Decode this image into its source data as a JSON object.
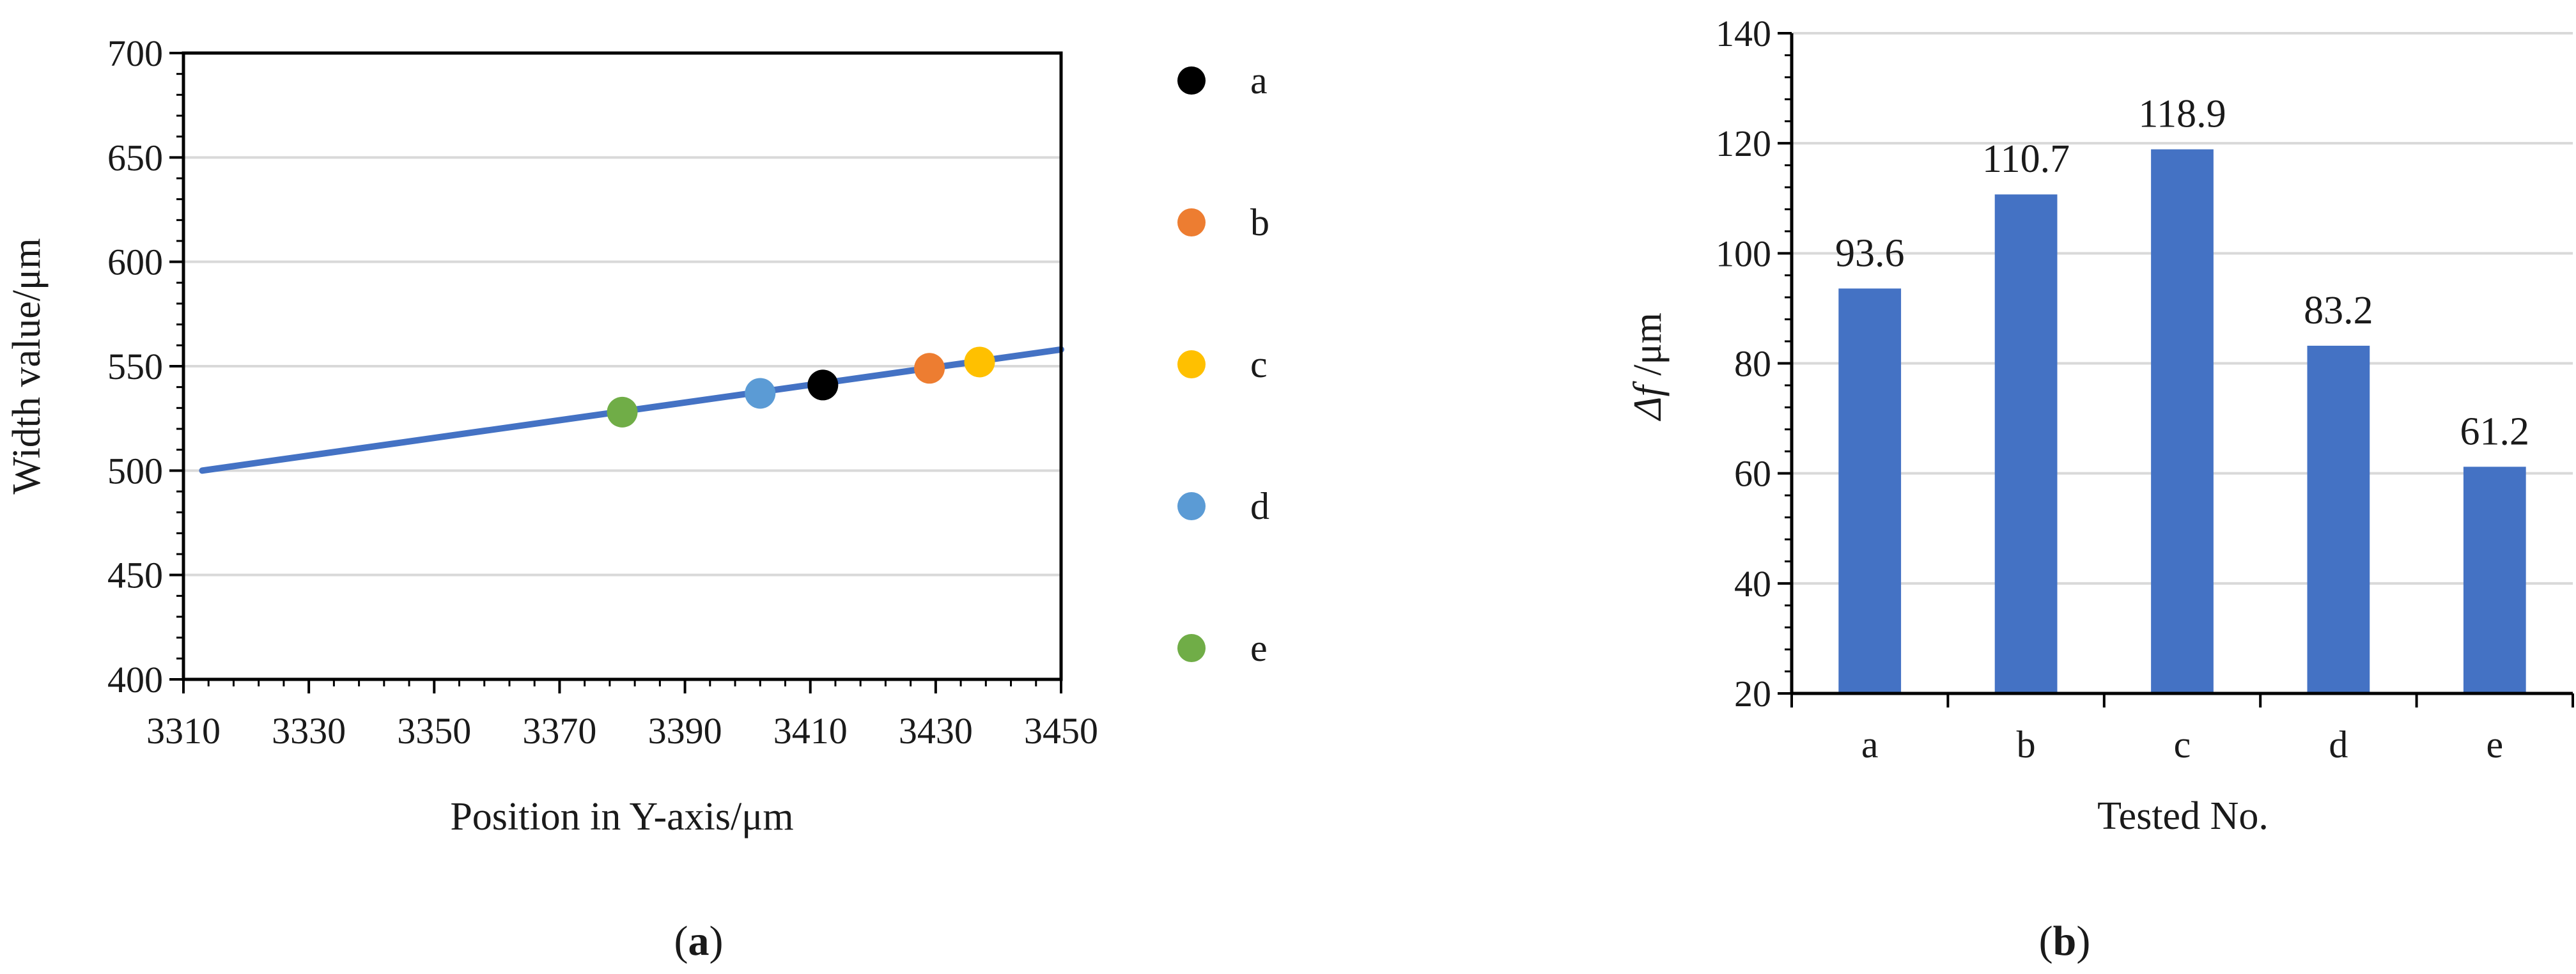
{
  "panels": [
    {
      "caption_open": "(",
      "caption_letter": "a",
      "caption_close": ")"
    },
    {
      "caption_open": "(",
      "caption_letter": "b",
      "caption_close": ")"
    }
  ],
  "chart_data": [
    {
      "type": "scatter",
      "title": "",
      "xlabel": "Position in Y-axis/μm",
      "ylabel": "Width value/μm",
      "xlim": [
        3310,
        3450
      ],
      "ylim": [
        400,
        700
      ],
      "xticks": [
        3310,
        3330,
        3350,
        3370,
        3390,
        3410,
        3430,
        3450
      ],
      "yticks": [
        400,
        450,
        500,
        550,
        600,
        650,
        700
      ],
      "grid": true,
      "legend": "right",
      "line": {
        "color": "#4472c4",
        "x": [
          3313,
          3450
        ],
        "y": [
          500,
          558
        ]
      },
      "series": [
        {
          "name": "a",
          "color": "#000000",
          "x": 3412,
          "y": 541
        },
        {
          "name": "b",
          "color": "#ed7d31",
          "x": 3429,
          "y": 549
        },
        {
          "name": "c",
          "color": "#ffc000",
          "x": 3437,
          "y": 552
        },
        {
          "name": "d",
          "color": "#5b9bd5",
          "x": 3402,
          "y": 537
        },
        {
          "name": "e",
          "color": "#70ad47",
          "x": 3380,
          "y": 528
        }
      ]
    },
    {
      "type": "bar",
      "title": "",
      "xlabel": "Tested No.",
      "ylabel_italic": "Δf",
      "ylabel_unit": " /μm",
      "categories": [
        "a",
        "b",
        "c",
        "d",
        "e"
      ],
      "values": [
        93.6,
        110.7,
        118.9,
        83.2,
        61.2
      ],
      "labels": [
        "93.6",
        "110.7",
        "118.9",
        "83.2",
        "61.2"
      ],
      "ylim": [
        20,
        140
      ],
      "yticks": [
        20,
        40,
        60,
        80,
        100,
        120,
        140
      ],
      "grid": true,
      "bar_color": "#4472c4"
    }
  ]
}
